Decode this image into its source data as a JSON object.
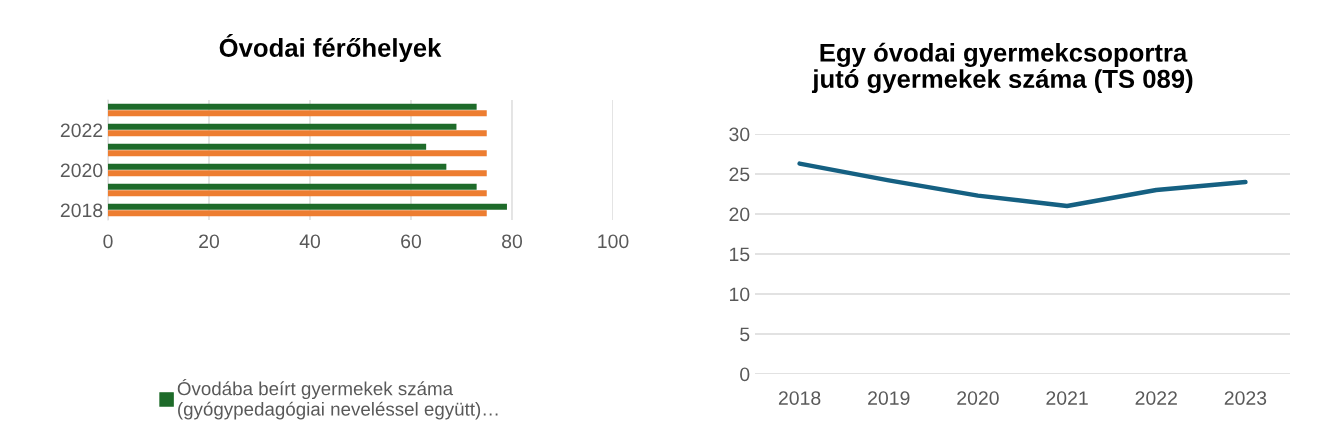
{
  "chart_data": [
    {
      "type": "bar",
      "orientation": "horizontal",
      "title": "Óvodai férőhelyek",
      "categories": [
        null,
        "2022",
        null,
        "2020",
        null,
        "2018"
      ],
      "series": [
        {
          "name": "Óvodába beírt gyermekek száma (gyógypedagógiai neveléssel együtt)…",
          "color": "#1e6b2a",
          "values": [
            73,
            69,
            63,
            67,
            73,
            79
          ]
        },
        {
          "color": "#ed7d31",
          "values": [
            75,
            75,
            75,
            75,
            75,
            75
          ]
        }
      ],
      "xlim": [
        0,
        100
      ],
      "xticks": [
        0,
        20,
        40,
        60,
        80,
        100
      ],
      "grid": "x",
      "legend": "bottom"
    },
    {
      "type": "line",
      "title": "Egy óvodai gyermekcsoportra jutó gyermekek száma (TS 089)",
      "categories": [
        "2018",
        "2019",
        "2020",
        "2021",
        "2022",
        "2023"
      ],
      "series": [
        {
          "color": "#156082",
          "values": [
            26.3,
            24.2,
            22.3,
            21.0,
            23.0,
            24.0
          ]
        }
      ],
      "ylim": [
        0,
        30
      ],
      "yticks": [
        0,
        5,
        10,
        15,
        20,
        25,
        30
      ],
      "grid": "y",
      "legend": false
    }
  ]
}
